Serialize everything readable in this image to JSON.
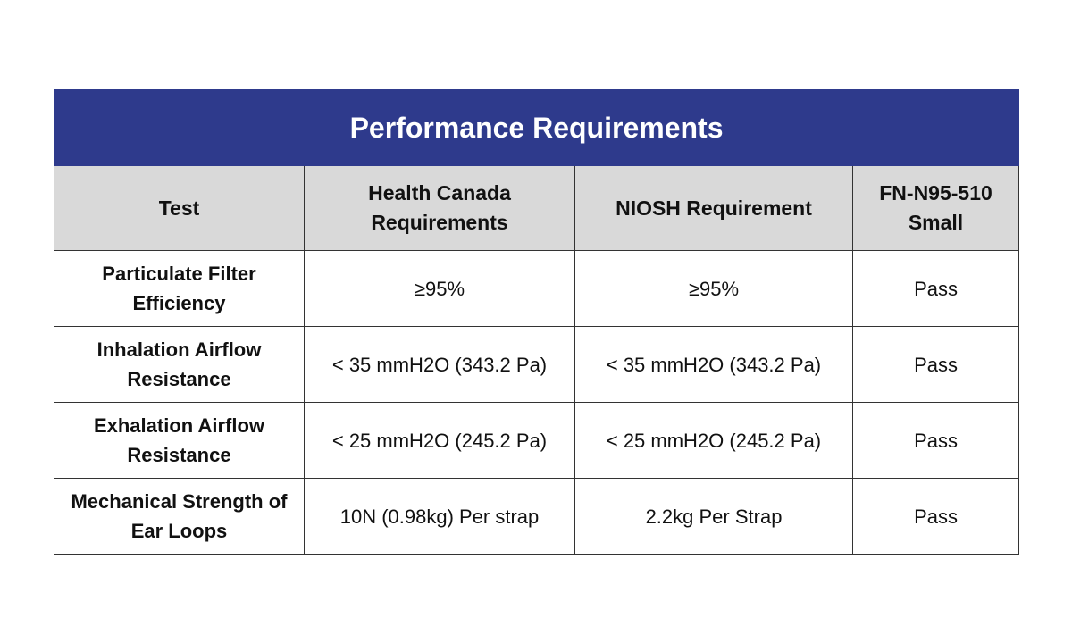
{
  "table": {
    "title": "Performance Requirements",
    "headers": [
      "Test",
      "Health Canada Requirements",
      "NIOSH Requirement",
      "FN-N95-510 Small"
    ],
    "rows": [
      [
        "Particulate Filter Efficiency",
        "≥95%",
        "≥95%",
        "Pass"
      ],
      [
        "Inhalation Airflow Resistance",
        "< 35 mmH2O (343.2 Pa)",
        "< 35 mmH2O (343.2 Pa)",
        "Pass"
      ],
      [
        "Exhalation Airflow Resistance",
        "< 25 mmH2O (245.2 Pa)",
        "< 25 mmH2O (245.2 Pa)",
        "Pass"
      ],
      [
        "Mechanical Strength of Ear Loops",
        "10N (0.98kg) Per strap",
        "2.2kg Per Strap",
        "Pass"
      ]
    ],
    "colors": {
      "title_bg": "#2e3a8c",
      "header_bg": "#d9d9d9",
      "border": "#333333"
    }
  }
}
